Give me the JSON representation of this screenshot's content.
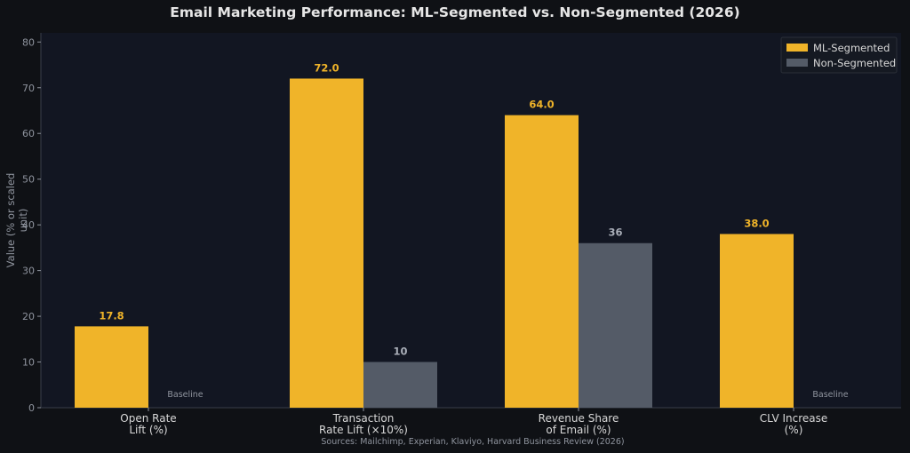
{
  "chart_data": {
    "type": "bar",
    "title": "Email Marketing Performance: ML-Segmented vs. Non-Segmented (2026)",
    "ylabel": "Value (% or scaled unit)",
    "xlabel": "",
    "source": "Sources: Mailchimp, Experian, Klaviyo, Harvard Business Review (2026)",
    "ylim": [
      0,
      82
    ],
    "yticks": [
      0,
      10,
      20,
      30,
      40,
      50,
      60,
      70,
      80
    ],
    "grid": false,
    "legend_position": "top-right",
    "categories": [
      [
        "Open Rate",
        "Lift (%)"
      ],
      [
        "Transaction",
        "Rate Lift (×10%)"
      ],
      [
        "Revenue Share",
        "of Email (%)"
      ],
      [
        "CLV Increase",
        "(%)"
      ]
    ],
    "series": [
      {
        "name": "ML-Segmented",
        "color": "#f0b429",
        "values": [
          17.8,
          72.0,
          64.0,
          38.0
        ],
        "labels": [
          "17.8",
          "72.0",
          "64.0",
          "38.0"
        ]
      },
      {
        "name": "Non-Segmented",
        "color": "#545b67",
        "values": [
          null,
          10,
          36,
          null
        ],
        "labels": [
          "Baseline",
          "10",
          "36",
          "Baseline"
        ]
      }
    ]
  }
}
